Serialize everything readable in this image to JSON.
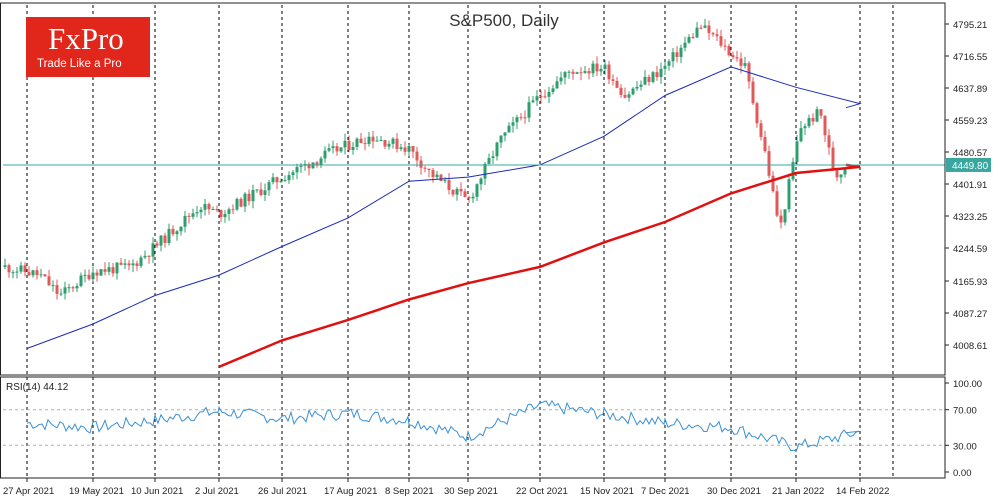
{
  "chart_data": {
    "type": "line",
    "title": "S&P500, Daily",
    "price_panel": {
      "y_ticks": [
        "4795.21",
        "4716.55",
        "4637.89",
        "4559.23",
        "4480.57",
        "4401.91",
        "4323.25",
        "4244.59",
        "4165.93",
        "4087.27",
        "4008.61"
      ],
      "ylim": [
        3955,
        4830
      ],
      "current_price": "4449.80",
      "current_price_value": 4449.8,
      "series": [
        {
          "type": "candlestick"
        },
        {
          "type": "line",
          "x": [
            "27 Apr 2021",
            "19 May 2021",
            "10 Jun 2021",
            "2 Jul 2021",
            "26 Jul 2021",
            "17 Aug 2021",
            "8 Sep 2021",
            "30 Sep 2021",
            "22 Oct 2021",
            "15 Nov 2021",
            "7 Dec 2021",
            "30 Dec 2021",
            "21 Jan 2022",
            "14 Feb 2022",
            "17 Feb 2022"
          ],
          "y": [
            4000,
            4060,
            4130,
            4180,
            4250,
            4320,
            4410,
            4420,
            4450,
            4520,
            4620,
            4690,
            4640,
            4600,
            4590
          ]
        },
        {
          "type": "line",
          "x": [
            "2 Jul 2021",
            "26 Jul 2021",
            "17 Aug 2021",
            "8 Sep 2021",
            "30 Sep 2021",
            "22 Oct 2021",
            "15 Nov 2021",
            "7 Dec 2021",
            "30 Dec 2021",
            "21 Jan 2022",
            "14 Feb 2022",
            "17 Feb 2022"
          ],
          "y": [
            3955,
            4020,
            4070,
            4120,
            4160,
            4200,
            4260,
            4310,
            4380,
            4430,
            4445,
            4450
          ]
        }
      ]
    },
    "rsi_panel": {
      "label": "RSI(14) 44.12",
      "y_ticks": [
        "100.00",
        "70.00",
        "30.00",
        "0.00"
      ],
      "ylim": [
        0,
        100
      ],
      "levels": [
        70,
        30
      ],
      "series": [
        {
          "type": "line",
          "x": [
            "27 Apr 2021",
            "19 May 2021",
            "10 Jun 2021",
            "2 Jul 2021",
            "26 Jul 2021",
            "17 Aug 2021",
            "8 Sep 2021",
            "30 Sep 2021",
            "22 Oct 2021",
            "15 Nov 2021",
            "7 Dec 2021",
            "30 Dec 2021",
            "21 Jan 2022",
            "14 Feb 2022",
            "17 Feb 2022"
          ],
          "y": [
            55,
            50,
            58,
            68,
            60,
            66,
            58,
            40,
            75,
            65,
            55,
            50,
            28,
            45,
            44
          ]
        }
      ]
    },
    "x_ticks": [
      "27 Apr 2021",
      "19 May 2021",
      "10 Jun 2021",
      "2 Jul 2021",
      "26 Jul 2021",
      "17 Aug 2021",
      "8 Sep 2021",
      "30 Sep 2021",
      "22 Oct 2021",
      "15 Nov 2021",
      "7 Dec 2021",
      "30 Dec 2021",
      "21 Jan 2022",
      "14 Feb 2022"
    ],
    "colors": {
      "up_candle": "#2e9e6e",
      "down_candle": "#e05a5a",
      "ma_blue": "#1c2ab8",
      "ma_red": "#e01010",
      "price_line": "#39a6a0",
      "rsi": "#3b8fd6"
    }
  },
  "logo": {
    "brand": "FxPro",
    "tagline": "Trade Like a Pro",
    "color": "#e1261c"
  }
}
